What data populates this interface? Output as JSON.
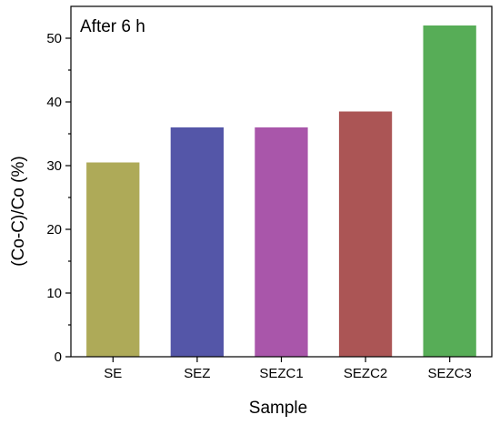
{
  "chart_data": {
    "type": "bar",
    "title": "",
    "annotation": "After 6 h",
    "xlabel": "Sample",
    "ylabel": "(Co-C)/Co (%)",
    "categories": [
      "SE",
      "SEZ",
      "SEZC1",
      "SEZC2",
      "SEZC3"
    ],
    "values": [
      30.5,
      36.0,
      36.0,
      38.5,
      52.0
    ],
    "colors": [
      "#aeaa58",
      "#5456a8",
      "#a956aa",
      "#ab5555",
      "#57ad57"
    ],
    "ylim": [
      0,
      55
    ],
    "yticks": [
      0,
      10,
      20,
      30,
      40,
      50
    ],
    "grid": false,
    "legend": "none"
  }
}
